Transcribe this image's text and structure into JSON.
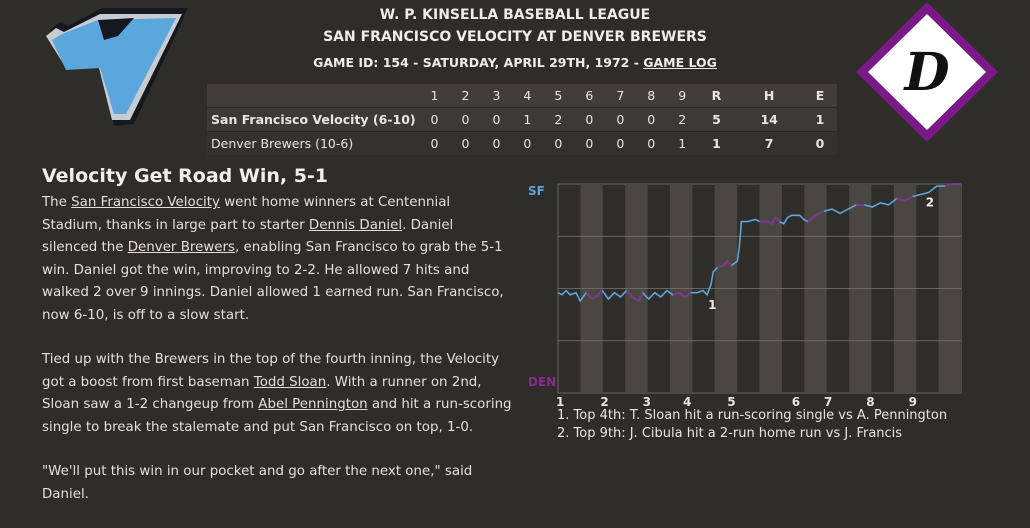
{
  "header": {
    "league": "W. P. KINSELLA BASEBALL LEAGUE",
    "matchup": "SAN FRANCISCO VELOCITY AT DENVER BREWERS",
    "game_info": "GAME ID: 154 - SATURDAY, APRIL 29TH, 1972 - ",
    "game_log_link": "GAME LOG"
  },
  "logos": {
    "away": {
      "icon": "velocity-v-logo",
      "color": "#5aa6dd"
    },
    "home": {
      "icon": "brewers-d-diamond-logo",
      "letter": "D",
      "color": "#7a1a86"
    }
  },
  "linescore": {
    "headers": [
      "",
      "1",
      "2",
      "3",
      "4",
      "5",
      "6",
      "7",
      "8",
      "9",
      "R",
      "H",
      "E"
    ],
    "rows": [
      {
        "team": "San Francisco Velocity (6-10)",
        "innings": [
          "0",
          "0",
          "0",
          "1",
          "2",
          "0",
          "0",
          "0",
          "2"
        ],
        "R": "5",
        "H": "14",
        "E": "1"
      },
      {
        "team": "Denver Brewers (10-6)",
        "innings": [
          "0",
          "0",
          "0",
          "0",
          "0",
          "0",
          "0",
          "0",
          "1"
        ],
        "R": "1",
        "H": "7",
        "E": "0"
      }
    ]
  },
  "story": {
    "headline": "Velocity Get Road Win, 5-1",
    "p1": [
      {
        "t": "The "
      },
      {
        "t": "San Francisco Velocity",
        "link": true
      },
      {
        "t": " went home winners at Centennial Stadium, thanks in large part to starter "
      },
      {
        "t": "Dennis Daniel",
        "link": true
      },
      {
        "t": ". Daniel silenced the "
      },
      {
        "t": "Denver Brewers",
        "link": true
      },
      {
        "t": ", enabling San Francisco to grab the 5-1 win. Daniel got the win, improving to 2-2. He allowed 7 hits and walked 2 over 9 innings. Daniel allowed 1 earned run. San Francisco, now 6-10, is off to a slow start."
      }
    ],
    "p2": [
      {
        "t": "Tied up with the Brewers in the top of the fourth inning, the Velocity got a boost from first baseman "
      },
      {
        "t": "Todd Sloan",
        "link": true
      },
      {
        "t": ". With a runner on 2nd, Sloan saw a 1-2 changeup from "
      },
      {
        "t": "Abel Pennington",
        "link": true
      },
      {
        "t": " and hit a run-scoring single to break the stalemate and put San Francisco on top, 1-0."
      }
    ],
    "p3": [
      {
        "t": "\"We'll put this win in our pocket and go after the next one,\" said Daniel."
      }
    ]
  },
  "win_probability": {
    "label_top": "SF",
    "label_bottom": "DEN",
    "color_away": "#5aa6dd",
    "color_home": "#8a2a96",
    "inning_labels": [
      "1",
      "2",
      "3",
      "4",
      "5",
      "6",
      "7",
      "8",
      "9"
    ],
    "markers": [
      "1",
      "2"
    ],
    "notes": [
      "1. Top 4th: T. Sloan hit a run-scoring single vs A. Pennington",
      "2. Top 9th: J. Cibula hit a 2-run home run vs J. Francis"
    ]
  }
}
